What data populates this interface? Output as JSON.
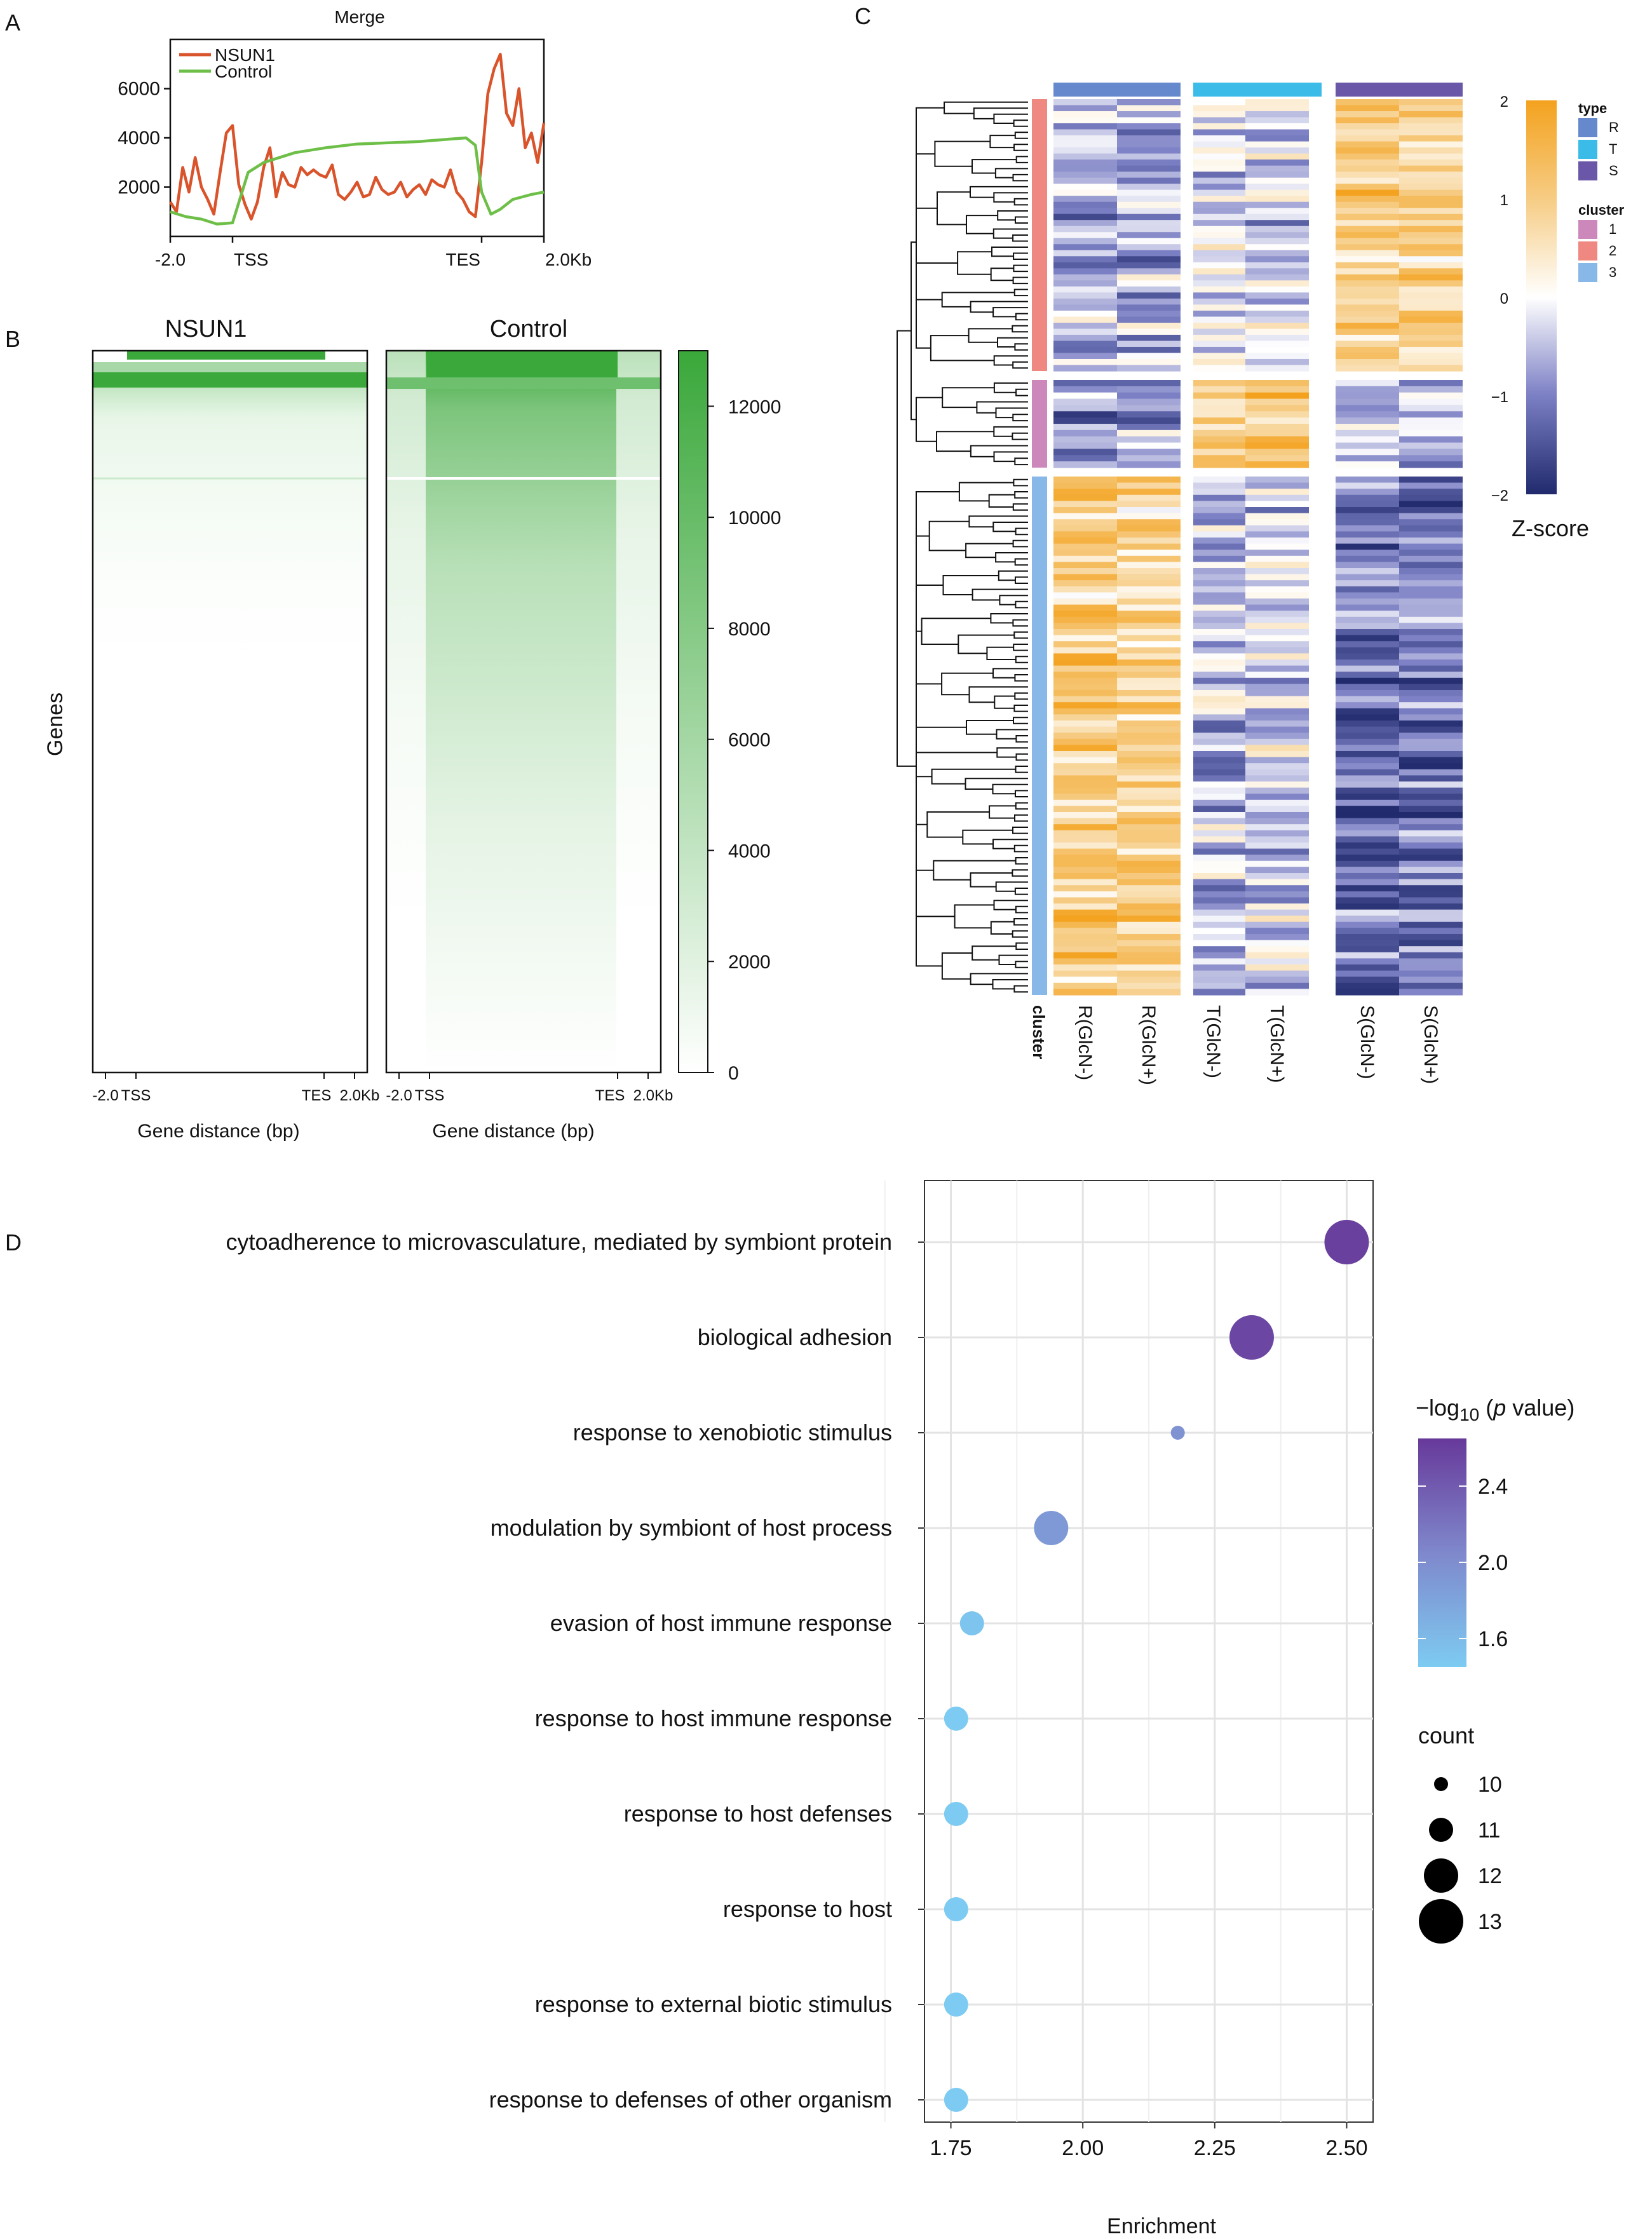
{
  "panels": {
    "a": {
      "letter": "A"
    },
    "b": {
      "letter": "B"
    },
    "c": {
      "letter": "C"
    },
    "d": {
      "letter": "D"
    }
  },
  "chart_data": [
    {
      "id": "A",
      "type": "line",
      "title": "Merge",
      "xlabel": "",
      "ylabel": "",
      "xlim": [
        -2,
        10
      ],
      "ylim": [
        0,
        8000
      ],
      "yticks": [
        2000,
        4000,
        6000
      ],
      "ytick_labels": [
        "2000",
        "4000",
        "6000"
      ],
      "xtick_labels": [
        "-2.0",
        "TSS",
        "TES",
        "2.0Kb"
      ],
      "legend_position": "top-left",
      "series": [
        {
          "name": "NSUN1",
          "color": "#d9532b",
          "x": [
            -2.0,
            -1.8,
            -1.6,
            -1.4,
            -1.2,
            -1.0,
            -0.8,
            -0.6,
            -0.4,
            -0.2,
            0.0,
            0.2,
            0.4,
            0.6,
            0.8,
            1.0,
            1.2,
            1.4,
            1.6,
            1.8,
            2.0,
            2.2,
            2.4,
            2.6,
            2.8,
            3.0,
            3.2,
            3.4,
            3.6,
            3.8,
            4.0,
            4.2,
            4.4,
            4.6,
            4.8,
            5.0,
            5.2,
            5.4,
            5.6,
            5.8,
            6.0,
            6.2,
            6.4,
            6.6,
            6.8,
            7.0,
            7.2,
            7.4,
            7.6,
            7.8,
            8.0,
            8.2,
            8.4,
            8.6,
            8.8,
            9.0,
            9.2,
            9.4,
            9.6,
            9.8,
            10.0
          ],
          "values": [
            1400,
            1000,
            2800,
            1800,
            3200,
            2000,
            1500,
            900,
            2600,
            4200,
            4500,
            2100,
            1300,
            700,
            1400,
            2800,
            3600,
            1600,
            2600,
            2100,
            2000,
            2800,
            2500,
            2700,
            2500,
            2400,
            2900,
            1700,
            1500,
            1800,
            2200,
            1600,
            1700,
            2400,
            1900,
            1700,
            1800,
            2200,
            1600,
            1900,
            2100,
            1700,
            2300,
            2100,
            2000,
            2700,
            1800,
            1500,
            1000,
            800,
            3000,
            5800,
            6800,
            7400,
            5000,
            4500,
            6000,
            3600,
            4200,
            3000,
            4600
          ]
        },
        {
          "name": "Control",
          "color": "#6ebf48",
          "x": [
            -2.0,
            -1.5,
            -1.0,
            -0.5,
            0.0,
            0.5,
            1.0,
            2.0,
            3.0,
            4.0,
            5.0,
            6.0,
            7.0,
            7.5,
            7.8,
            8.0,
            8.3,
            8.6,
            9.0,
            9.3,
            9.6,
            10.0
          ],
          "values": [
            1000,
            800,
            700,
            500,
            550,
            2600,
            3000,
            3400,
            3600,
            3750,
            3800,
            3850,
            3950,
            4000,
            3700,
            1800,
            900,
            1100,
            1500,
            1600,
            1700,
            1800
          ]
        }
      ]
    },
    {
      "id": "B",
      "type": "heatmap",
      "ylabel": "Genes",
      "colorbar_range": [
        0,
        13000
      ],
      "colorbar_ticks": [
        0,
        2000,
        4000,
        6000,
        8000,
        10000,
        12000
      ],
      "colorbar_tick_labels": [
        "0",
        "2000",
        "4000",
        "6000",
        "8000",
        "10000",
        "12000"
      ],
      "colormap": [
        "#ffffff",
        "#3aa83a"
      ],
      "panels": [
        {
          "title": "NSUN1",
          "xlabel": "Gene distance (bp)",
          "xtick_labels": [
            "-2.0",
            "TSS",
            "TES",
            "2.0Kb"
          ],
          "peak_signal": 12500,
          "band_signal": 9000
        },
        {
          "title": "Control",
          "xlabel": "Gene distance (bp)",
          "xtick_labels": [
            "-2.0",
            "TSS",
            "TES",
            "2.0Kb"
          ],
          "peak_signal": 13000,
          "band_signal": 11000
        }
      ]
    },
    {
      "id": "C",
      "type": "heatmap",
      "columns": [
        "R(GlcN-)",
        "R(GlcN+)",
        "T(GlcN-)",
        "T(GlcN+)",
        "S(GlcN-)",
        "S(GlcN+)"
      ],
      "column_types": [
        "R",
        "R",
        "T",
        "T",
        "S",
        "S"
      ],
      "row_cluster_label": "cluster",
      "legend_type_title": "type",
      "legend_type_entries": [
        {
          "label": "R",
          "color": "#6688cc"
        },
        {
          "label": "T",
          "color": "#3bbbe8"
        },
        {
          "label": "S",
          "color": "#6a57a8"
        }
      ],
      "legend_cluster_title": "cluster",
      "legend_cluster_entries": [
        {
          "label": "1",
          "color": "#cc88bb"
        },
        {
          "label": "2",
          "color": "#ee8880"
        },
        {
          "label": "3",
          "color": "#88b8e8"
        }
      ],
      "colorbar_title": "Z-score",
      "colorbar_range": [
        -2,
        2
      ],
      "colorbar_ticks": [
        2,
        1,
        0,
        -1,
        -2
      ],
      "colorbar_tick_labels": [
        "2",
        "1",
        "0",
        "−1",
        "−2"
      ],
      "cluster_order": [
        "2",
        "1",
        "3"
      ],
      "cluster_row_counts": [
        45,
        14,
        85
      ],
      "cluster_mean_zscores": [
        [
          -0.6,
          -0.6,
          -0.2,
          -0.4,
          1.0,
          0.8
        ],
        [
          -0.8,
          -0.7,
          1.0,
          1.2,
          -0.4,
          -0.5
        ],
        [
          1.0,
          0.9,
          -0.5,
          -0.3,
          -1.2,
          -1.1
        ]
      ]
    },
    {
      "id": "D",
      "type": "scatter",
      "xlabel": "Enrichment",
      "ylabel": "",
      "xlim": [
        1.7,
        2.55
      ],
      "xticks": [
        1.75,
        2.0,
        2.25,
        2.5
      ],
      "xtick_labels": [
        "1.75",
        "2.00",
        "2.25",
        "2.50"
      ],
      "color_legend_title_prefix": "−log",
      "color_legend_title_sub": "10",
      "color_legend_title_open": " (",
      "color_legend_title_p": "p",
      "color_legend_title_suffix": " value)",
      "color_range": [
        1.45,
        2.65
      ],
      "color_ticks": [
        1.6,
        2.0,
        2.4
      ],
      "color_tick_labels": [
        "1.6",
        "2.0",
        "2.4"
      ],
      "size_legend_title": "count",
      "size_legend_values": [
        10,
        11,
        12,
        13
      ],
      "size_legend_labels": [
        "10",
        "11",
        "12",
        "13"
      ],
      "categories": [
        "cytoadherence to microvasculature, mediated by symbiont protein",
        "biological adhesion",
        "response to xenobiotic stimulus",
        "modulation by symbiont of host process",
        "evasion of host immune response",
        "response to host immune response",
        "response to host defenses",
        "response to host",
        "response to external biotic stimulus",
        "response to defenses of other organism"
      ],
      "enrichment": [
        2.5,
        2.32,
        2.18,
        1.94,
        1.79,
        1.76,
        1.76,
        1.76,
        1.76,
        1.76
      ],
      "neg_log10_p": [
        2.6,
        2.55,
        1.95,
        1.9,
        1.5,
        1.45,
        1.45,
        1.45,
        1.45,
        1.45
      ],
      "count": [
        13,
        13,
        10,
        12,
        11,
        11,
        11,
        11,
        11,
        11
      ]
    }
  ]
}
